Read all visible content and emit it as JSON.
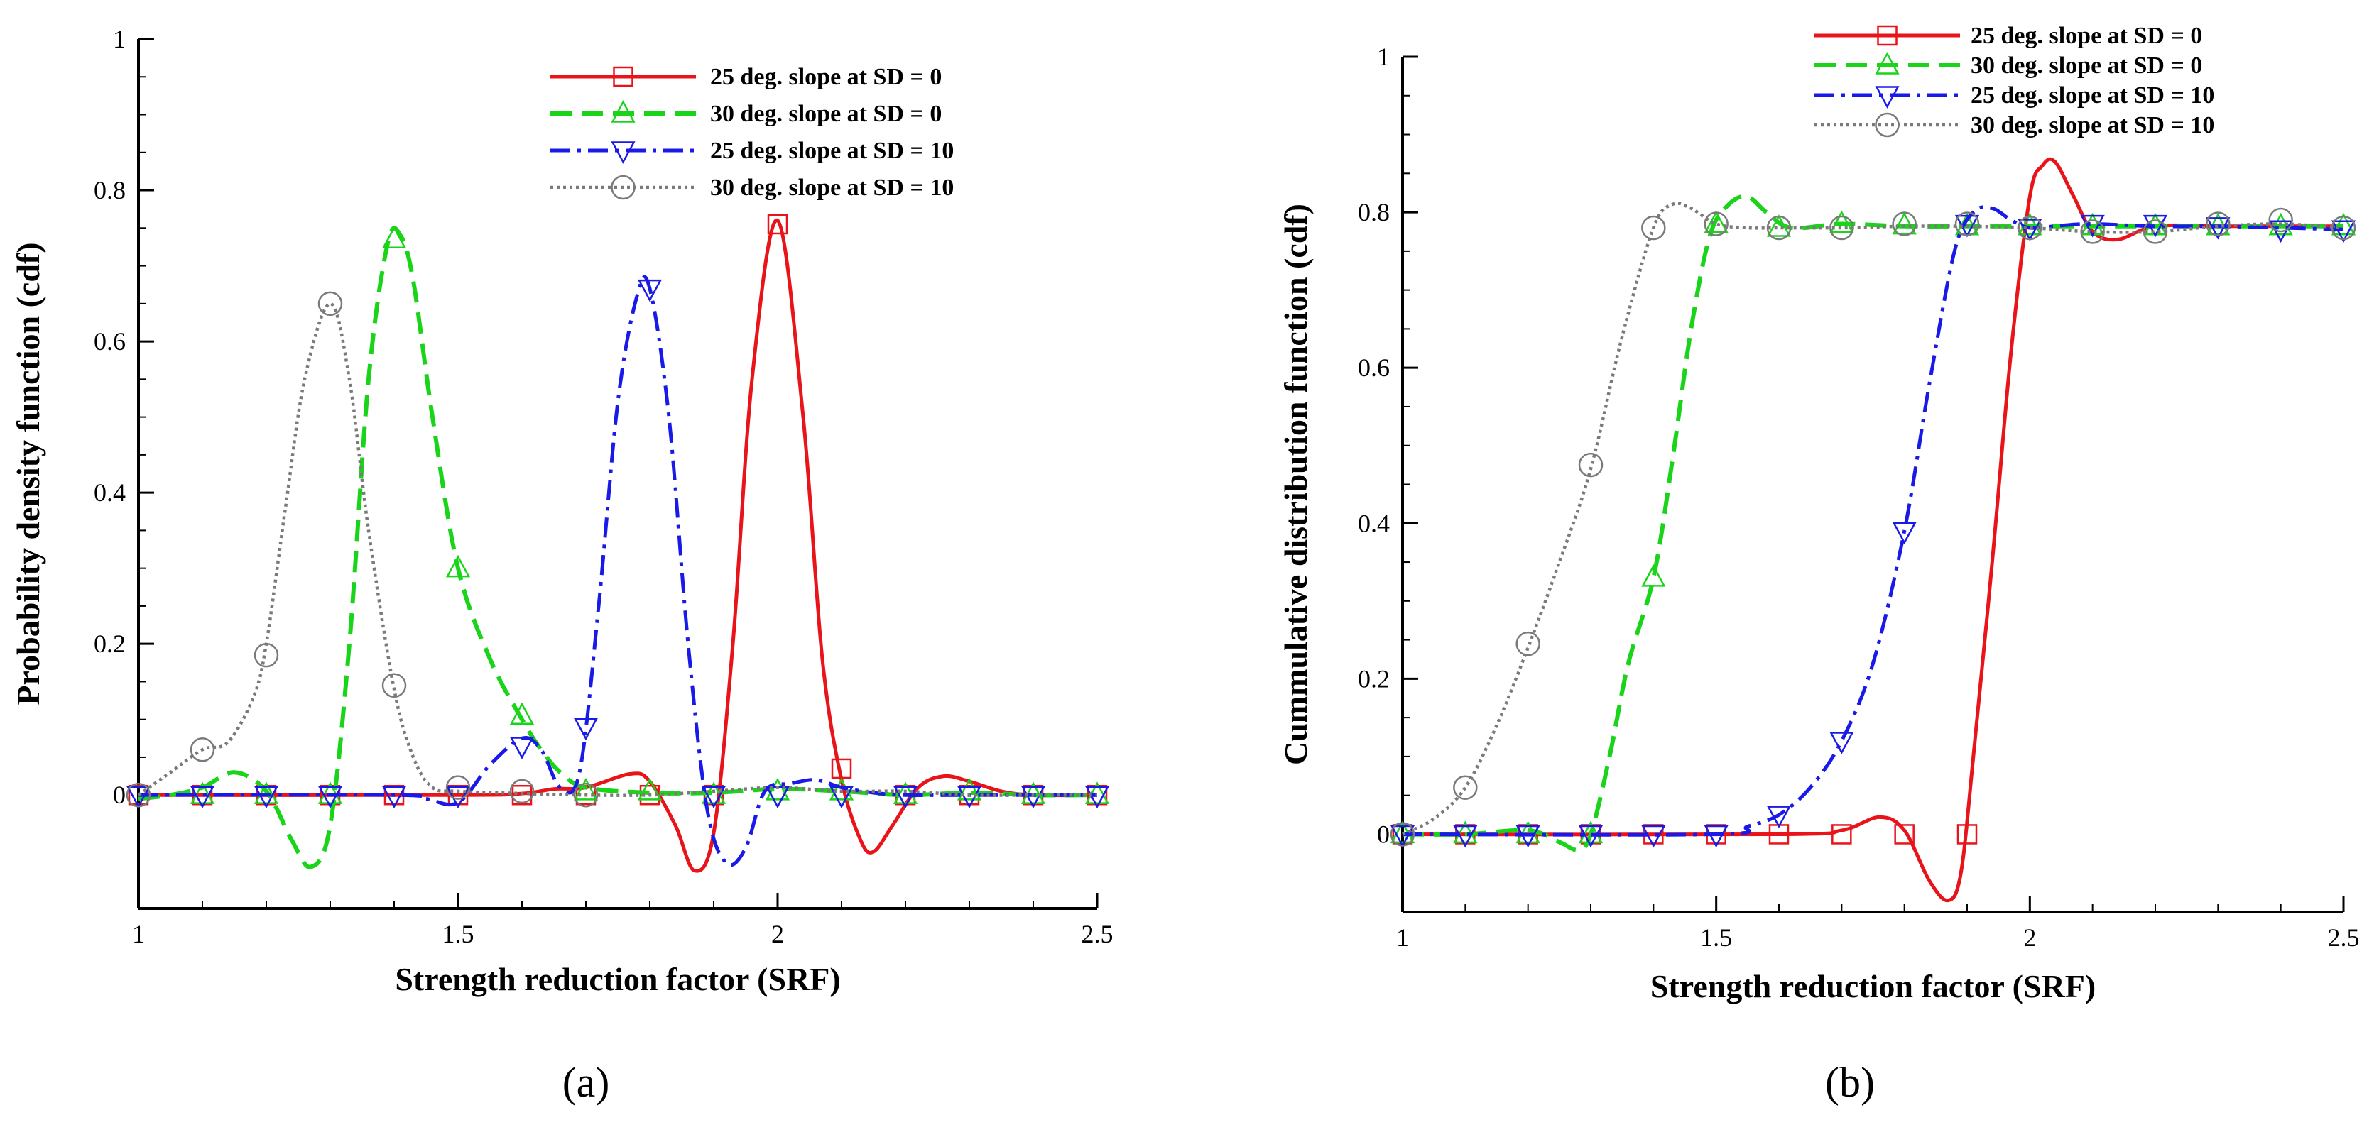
{
  "figure": {
    "panel_labels": [
      "(a)",
      "(b)"
    ]
  },
  "chart_data": [
    {
      "type": "line",
      "panel": "(a)",
      "xlabel": "Strength reduction factor (SRF)",
      "ylabel": "Probability density function (cdf)",
      "xlim": [
        1,
        2.5
      ],
      "ylim": [
        -0.15,
        1
      ],
      "xticks": [
        1,
        1.5,
        2,
        2.5
      ],
      "xtick_labels": [
        "1",
        "1.5",
        "2",
        "2.5"
      ],
      "yticks": [
        0,
        0.2,
        0.4,
        0.6,
        0.8,
        1
      ],
      "ytick_labels": [
        "0",
        "0.2",
        "0.4",
        "0.6",
        "0.8",
        "1"
      ],
      "legend_position": "top-right",
      "series": [
        {
          "name": "25 deg. slope at SD = 0",
          "color": "#e8141a",
          "dash": "solid",
          "marker": "square",
          "x": [
            1.0,
            1.5,
            1.6,
            1.65,
            1.7,
            1.77,
            1.8,
            1.84,
            1.87,
            1.9,
            1.93,
            1.96,
            2.0,
            2.04,
            2.07,
            2.1,
            2.13,
            2.15,
            2.18,
            2.22,
            2.26,
            2.3,
            2.35,
            2.4,
            2.5
          ],
          "y": [
            0,
            0,
            0.002,
            0.008,
            0.01,
            0.028,
            0.018,
            -0.04,
            -0.1,
            -0.05,
            0.2,
            0.55,
            0.76,
            0.5,
            0.18,
            0.02,
            -0.06,
            -0.075,
            -0.04,
            0.01,
            0.025,
            0.018,
            0.005,
            0,
            0
          ],
          "marker_x": [
            1.0,
            1.1,
            1.2,
            1.3,
            1.4,
            1.5,
            1.6,
            1.7,
            1.8,
            1.9,
            2.0,
            2.1,
            2.2,
            2.3,
            2.4,
            2.5
          ],
          "marker_y": [
            0,
            0,
            0,
            0,
            0,
            0,
            0,
            0,
            0,
            0,
            0.755,
            0.035,
            0,
            0,
            0,
            0
          ]
        },
        {
          "name": "30 deg. slope at SD = 0",
          "color": "#1ad41a",
          "dash": "dashed",
          "marker": "triangle-up",
          "x": [
            1.0,
            1.05,
            1.1,
            1.15,
            1.2,
            1.24,
            1.27,
            1.3,
            1.33,
            1.36,
            1.39,
            1.41,
            1.43,
            1.46,
            1.5,
            1.55,
            1.6,
            1.63,
            1.66,
            1.7,
            1.8,
            1.9,
            2.0,
            2.1,
            2.2,
            2.3,
            2.4,
            2.5
          ],
          "y": [
            -0.005,
            0,
            0.01,
            0.03,
            0.005,
            -0.06,
            -0.095,
            -0.04,
            0.2,
            0.55,
            0.73,
            0.74,
            0.68,
            0.5,
            0.3,
            0.18,
            0.1,
            0.06,
            0.03,
            0.01,
            0.003,
            0.003,
            0.008,
            0.005,
            0,
            0.003,
            0,
            0
          ],
          "marker_x": [
            1.1,
            1.2,
            1.3,
            1.4,
            1.5,
            1.6,
            1.7,
            1.8,
            1.9,
            2.0,
            2.1,
            2.2,
            2.3,
            2.4,
            2.5
          ],
          "marker_y": [
            0,
            0,
            0,
            0.735,
            0.3,
            0.105,
            0.005,
            0.005,
            0,
            0.005,
            0.005,
            0,
            0.005,
            0,
            0
          ]
        },
        {
          "name": "25 deg. slope at SD = 10",
          "color": "#1a1ae8",
          "dash": "dashdot",
          "marker": "triangle-down",
          "x": [
            1.0,
            1.4,
            1.45,
            1.5,
            1.55,
            1.6,
            1.63,
            1.66,
            1.69,
            1.72,
            1.75,
            1.78,
            1.8,
            1.83,
            1.86,
            1.89,
            1.92,
            1.95,
            1.98,
            2.02,
            2.06,
            2.1,
            2.15,
            2.2,
            2.3,
            2.5
          ],
          "y": [
            0,
            0,
            -0.005,
            -0.01,
            0.04,
            0.075,
            0.06,
            0.01,
            0.03,
            0.25,
            0.52,
            0.66,
            0.67,
            0.5,
            0.2,
            -0.02,
            -0.09,
            -0.07,
            0.005,
            0.015,
            0.02,
            0.01,
            0.003,
            0,
            0,
            0
          ],
          "marker_x": [
            1.0,
            1.1,
            1.2,
            1.3,
            1.4,
            1.5,
            1.6,
            1.7,
            1.8,
            1.9,
            2.0,
            2.1,
            2.2,
            2.3,
            2.4,
            2.5
          ],
          "marker_y": [
            0,
            0,
            0,
            0,
            0,
            0,
            0.065,
            0.09,
            0.67,
            0,
            0,
            0,
            0,
            0,
            0,
            0
          ]
        },
        {
          "name": "30 deg. slope at SD = 10",
          "color": "#7a7a7a",
          "dash": "dotted",
          "marker": "circle",
          "x": [
            1.0,
            1.05,
            1.1,
            1.14,
            1.18,
            1.2,
            1.23,
            1.26,
            1.3,
            1.33,
            1.36,
            1.4,
            1.43,
            1.46,
            1.5,
            1.6,
            1.7,
            1.8,
            1.9,
            2.0,
            2.1,
            2.2,
            2.3,
            2.4,
            2.5
          ],
          "y": [
            0,
            0.03,
            0.06,
            0.07,
            0.13,
            0.2,
            0.38,
            0.55,
            0.65,
            0.55,
            0.35,
            0.14,
            0.05,
            0.01,
            0.005,
            0.002,
            0,
            0,
            0.005,
            0.01,
            0.005,
            0.005,
            0,
            0,
            0
          ],
          "marker_x": [
            1.0,
            1.1,
            1.2,
            1.3,
            1.4,
            1.5,
            1.6,
            1.7
          ],
          "marker_y": [
            0,
            0.06,
            0.185,
            0.65,
            0.145,
            0.01,
            0.005,
            0
          ]
        }
      ]
    },
    {
      "type": "line",
      "panel": "(b)",
      "xlabel": "Strength reduction factor (SRF)",
      "ylabel": "Cummulative distribution function (cdf)",
      "xlim": [
        1,
        2.5
      ],
      "ylim": [
        -0.1,
        1
      ],
      "xticks": [
        1,
        1.5,
        2,
        2.5
      ],
      "xtick_labels": [
        "1",
        "1.5",
        "2",
        "2.5"
      ],
      "yticks": [
        0,
        0.2,
        0.4,
        0.6,
        0.8,
        1
      ],
      "ytick_labels": [
        "0",
        "0.2",
        "0.4",
        "0.6",
        "0.8",
        "1"
      ],
      "legend_position": "top-right",
      "series": [
        {
          "name": "25 deg. slope at SD = 0",
          "color": "#e8141a",
          "dash": "solid",
          "marker": "square",
          "x": [
            1.0,
            1.6,
            1.7,
            1.76,
            1.8,
            1.84,
            1.87,
            1.89,
            1.91,
            1.94,
            1.97,
            2.0,
            2.02,
            2.04,
            2.07,
            2.1,
            2.14,
            2.2,
            2.3,
            2.4,
            2.5
          ],
          "y": [
            0,
            0,
            0.005,
            0.022,
            0.005,
            -0.06,
            -0.085,
            -0.05,
            0.1,
            0.35,
            0.62,
            0.82,
            0.86,
            0.865,
            0.82,
            0.775,
            0.765,
            0.782,
            0.782,
            0.782,
            0.782
          ],
          "marker_x": [
            1.0,
            1.1,
            1.2,
            1.3,
            1.4,
            1.5,
            1.6,
            1.7,
            1.8,
            1.9
          ],
          "marker_y": [
            0,
            0,
            0,
            0,
            0,
            0,
            0,
            0,
            0,
            0
          ]
        },
        {
          "name": "30 deg. slope at SD = 0",
          "color": "#1ad41a",
          "dash": "dashed",
          "marker": "triangle-up",
          "x": [
            1.0,
            1.1,
            1.2,
            1.25,
            1.28,
            1.3,
            1.33,
            1.36,
            1.4,
            1.43,
            1.46,
            1.49,
            1.52,
            1.55,
            1.58,
            1.62,
            1.7,
            1.8,
            1.9,
            2.0,
            2.1,
            2.2,
            2.3,
            2.4,
            2.5
          ],
          "y": [
            0,
            0,
            0.005,
            -0.01,
            -0.02,
            0,
            0.1,
            0.22,
            0.33,
            0.48,
            0.65,
            0.77,
            0.81,
            0.82,
            0.8,
            0.78,
            0.785,
            0.782,
            0.782,
            0.782,
            0.782,
            0.782,
            0.782,
            0.782,
            0.782
          ],
          "marker_x": [
            1.0,
            1.1,
            1.2,
            1.3,
            1.4,
            1.5,
            1.6,
            1.7,
            1.8,
            1.9,
            2.0,
            2.1,
            2.2,
            2.3,
            2.4,
            2.5
          ],
          "marker_y": [
            0,
            0,
            0,
            0,
            0.33,
            0.785,
            0.78,
            0.785,
            0.783,
            0.782,
            0.782,
            0.782,
            0.782,
            0.782,
            0.782,
            0.782
          ]
        },
        {
          "name": "25 deg. slope at SD = 10",
          "color": "#1a1ae8",
          "dash": "dashdot",
          "marker": "triangle-down",
          "x": [
            1.0,
            1.5,
            1.55,
            1.6,
            1.65,
            1.7,
            1.75,
            1.8,
            1.84,
            1.88,
            1.91,
            1.94,
            1.97,
            2.0,
            2.05,
            2.1,
            2.2,
            2.3,
            2.4,
            2.5
          ],
          "y": [
            0,
            0,
            0.01,
            0.025,
            0.06,
            0.12,
            0.22,
            0.39,
            0.58,
            0.75,
            0.8,
            0.805,
            0.79,
            0.78,
            0.783,
            0.785,
            0.782,
            0.782,
            0.78,
            0.778
          ],
          "marker_x": [
            1.0,
            1.1,
            1.2,
            1.3,
            1.4,
            1.5,
            1.6,
            1.7,
            1.8,
            1.9,
            2.0,
            2.1,
            2.2,
            2.3,
            2.4,
            2.5
          ],
          "marker_y": [
            0,
            0,
            0,
            0,
            0,
            0,
            0.025,
            0.12,
            0.39,
            0.785,
            0.78,
            0.785,
            0.785,
            0.782,
            0.778,
            0.778
          ]
        },
        {
          "name": "30 deg. slope at SD = 10",
          "color": "#7a7a7a",
          "dash": "dotted",
          "marker": "circle",
          "x": [
            1.0,
            1.05,
            1.1,
            1.15,
            1.2,
            1.25,
            1.3,
            1.35,
            1.4,
            1.43,
            1.46,
            1.5,
            1.55,
            1.6,
            1.7,
            1.8,
            1.9,
            2.0,
            2.1,
            2.2,
            2.3,
            2.4,
            2.5
          ],
          "y": [
            0,
            0.02,
            0.06,
            0.14,
            0.24,
            0.35,
            0.47,
            0.64,
            0.78,
            0.81,
            0.805,
            0.785,
            0.78,
            0.78,
            0.78,
            0.782,
            0.782,
            0.78,
            0.775,
            0.775,
            0.782,
            0.785,
            0.78
          ],
          "marker_x": [
            1.0,
            1.1,
            1.2,
            1.3,
            1.4,
            1.5,
            1.6,
            1.7,
            1.8,
            1.9,
            2.0,
            2.1,
            2.2,
            2.3,
            2.4,
            2.5
          ],
          "marker_y": [
            0,
            0.06,
            0.245,
            0.475,
            0.78,
            0.785,
            0.78,
            0.78,
            0.785,
            0.785,
            0.78,
            0.775,
            0.775,
            0.785,
            0.79,
            0.78
          ]
        }
      ]
    }
  ]
}
